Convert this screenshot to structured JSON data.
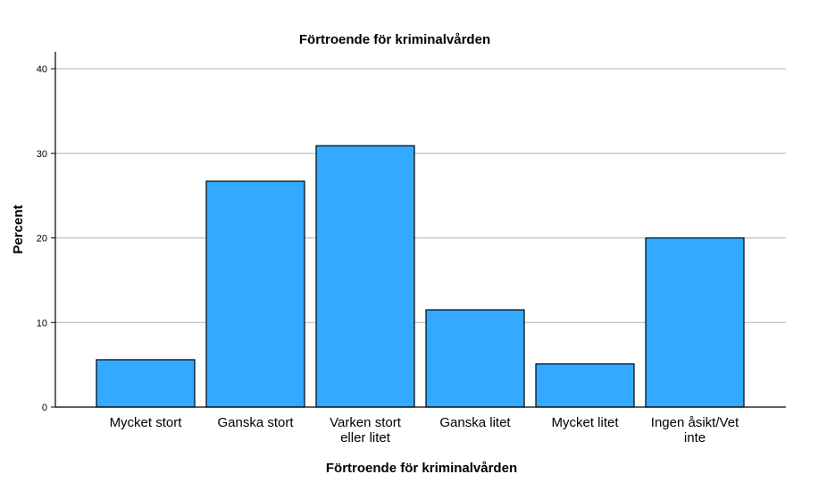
{
  "chart_data": {
    "type": "bar",
    "title": "Förtroende för kriminalvården",
    "xlabel": "Förtroende för kriminalvården",
    "ylabel": "Percent",
    "categories": [
      [
        "Mycket stort"
      ],
      [
        "Ganska stort"
      ],
      [
        "Varken stort",
        "eller litet"
      ],
      [
        "Ganska litet"
      ],
      [
        "Mycket litet"
      ],
      [
        "Ingen åsikt/Vet",
        "inte"
      ]
    ],
    "values": [
      5.6,
      26.7,
      30.9,
      11.5,
      5.1,
      20.0
    ],
    "ylim": [
      0,
      40
    ],
    "yticks": [
      0,
      10,
      20,
      30,
      40
    ],
    "grid": true,
    "colors": {
      "bar": "#33aaff",
      "bar_edge": "#000000",
      "grid": "#b3b3b3",
      "axis": "#000000"
    }
  }
}
